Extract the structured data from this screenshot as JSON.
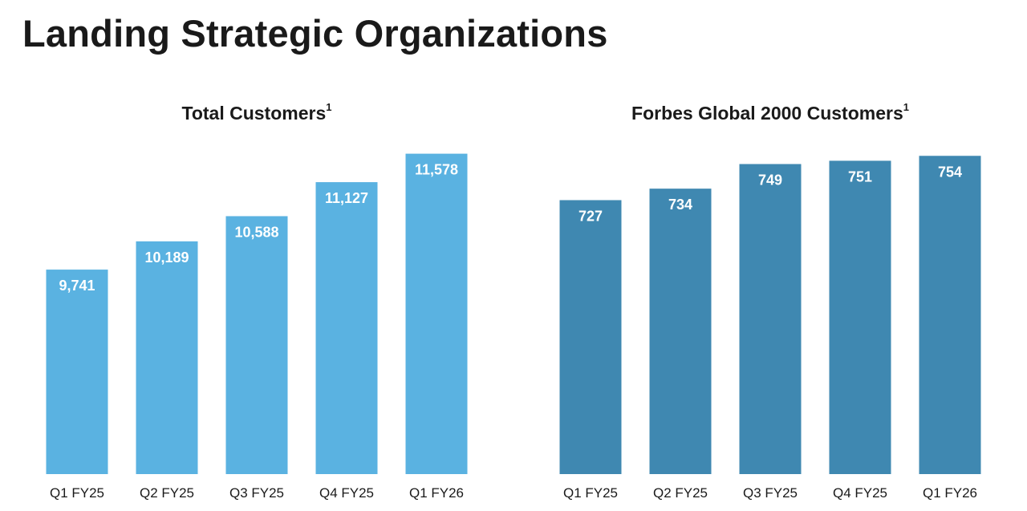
{
  "page": {
    "title": "Landing Strategic Organizations"
  },
  "chart_data": [
    {
      "type": "bar",
      "title": "Total Customers",
      "title_footnote": "1",
      "categories": [
        "Q1 FY25",
        "Q2 FY25",
        "Q3 FY25",
        "Q4 FY25",
        "Q1 FY26"
      ],
      "values": [
        9741,
        10189,
        10588,
        11127,
        11578
      ],
      "data_labels": [
        "9,741",
        "10,189",
        "10,588",
        "11,127",
        "11,578"
      ],
      "color": "#5ab2e1",
      "ylim": [
        6500,
        11700
      ],
      "grid": false,
      "xlabel": "",
      "ylabel": ""
    },
    {
      "type": "bar",
      "title": "Forbes Global 2000 Customers",
      "title_footnote": "1",
      "categories": [
        "Q1 FY25",
        "Q2 FY25",
        "Q3 FY25",
        "Q4 FY25",
        "Q1 FY26"
      ],
      "values": [
        727,
        734,
        749,
        751,
        754
      ],
      "data_labels": [
        "727",
        "734",
        "749",
        "751",
        "754"
      ],
      "color": "#3f88b1",
      "ylim": [
        560,
        760
      ],
      "grid": false,
      "xlabel": "",
      "ylabel": ""
    }
  ]
}
